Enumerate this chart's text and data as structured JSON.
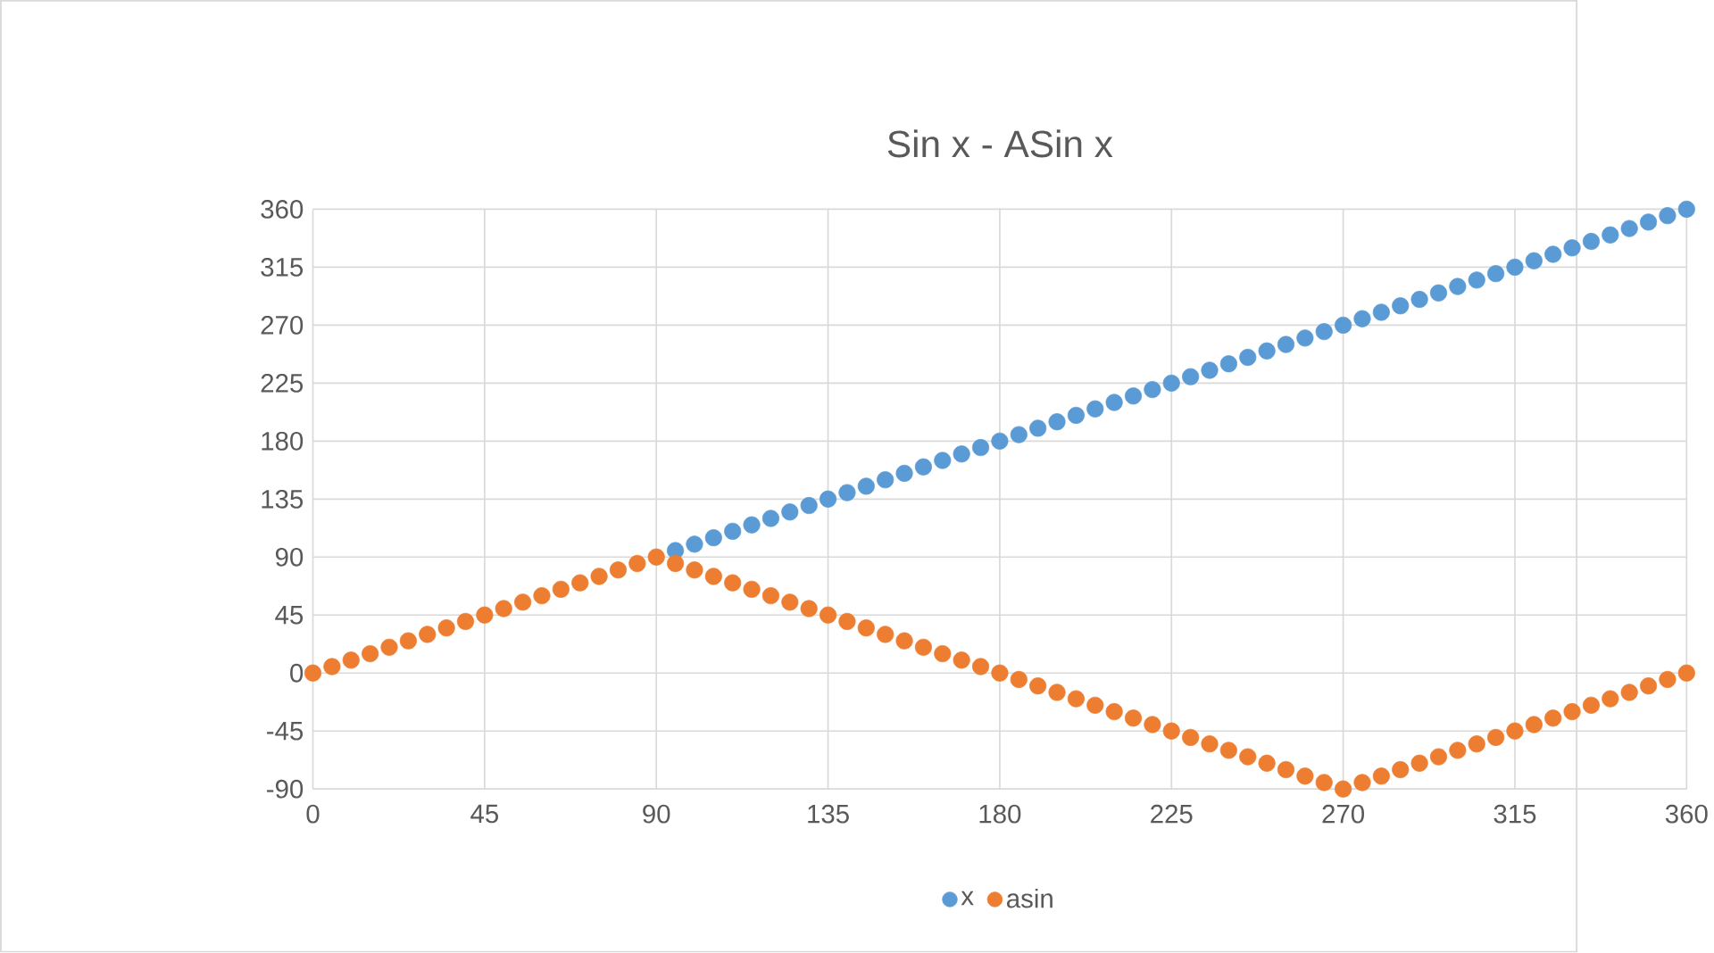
{
  "chart_data": {
    "type": "scatter",
    "title": "Sin x - ASin x",
    "x": [
      0,
      5,
      10,
      15,
      20,
      25,
      30,
      35,
      40,
      45,
      50,
      55,
      60,
      65,
      70,
      75,
      80,
      85,
      90,
      95,
      100,
      105,
      110,
      115,
      120,
      125,
      130,
      135,
      140,
      145,
      150,
      155,
      160,
      165,
      170,
      175,
      180,
      185,
      190,
      195,
      200,
      205,
      210,
      215,
      220,
      225,
      230,
      235,
      240,
      245,
      250,
      255,
      260,
      265,
      270,
      275,
      280,
      285,
      290,
      295,
      300,
      305,
      310,
      315,
      320,
      325,
      330,
      335,
      340,
      345,
      350,
      355,
      360
    ],
    "series": [
      {
        "name": "x",
        "color": "#5b9bd5",
        "values": [
          null,
          null,
          null,
          null,
          null,
          null,
          null,
          null,
          null,
          null,
          null,
          null,
          null,
          null,
          null,
          null,
          null,
          null,
          null,
          95,
          100,
          105,
          110,
          115,
          120,
          125,
          130,
          135,
          140,
          145,
          150,
          155,
          160,
          165,
          170,
          175,
          180,
          185,
          190,
          195,
          200,
          205,
          210,
          215,
          220,
          225,
          230,
          235,
          240,
          245,
          250,
          255,
          260,
          265,
          270,
          275,
          280,
          285,
          290,
          295,
          300,
          305,
          310,
          315,
          320,
          325,
          330,
          335,
          340,
          345,
          350,
          355,
          360
        ]
      },
      {
        "name": "asin",
        "color": "#ed7d31",
        "values": [
          0,
          5,
          10,
          15,
          20,
          25,
          30,
          35,
          40,
          45,
          50,
          55,
          60,
          65,
          70,
          75,
          80,
          85,
          90,
          85,
          80,
          75,
          70,
          65,
          60,
          55,
          50,
          45,
          40,
          35,
          30,
          25,
          20,
          15,
          10,
          5,
          0,
          -5,
          -10,
          -15,
          -20,
          -25,
          -30,
          -35,
          -40,
          -45,
          -50,
          -55,
          -60,
          -65,
          -70,
          -75,
          -80,
          -85,
          -90,
          -85,
          -80,
          -75,
          -70,
          -65,
          -60,
          -55,
          -50,
          -45,
          -40,
          -35,
          -30,
          -25,
          -20,
          -15,
          -10,
          -5,
          0
        ]
      }
    ],
    "xlim": [
      0,
      360
    ],
    "xticks": [
      0,
      45,
      90,
      135,
      180,
      225,
      270,
      315,
      360
    ],
    "ylim": [
      -90,
      360
    ],
    "yticks": [
      -90,
      -45,
      0,
      45,
      90,
      135,
      180,
      225,
      270,
      315,
      360
    ],
    "grid": true,
    "legend": "bottom",
    "marker": "circle"
  }
}
